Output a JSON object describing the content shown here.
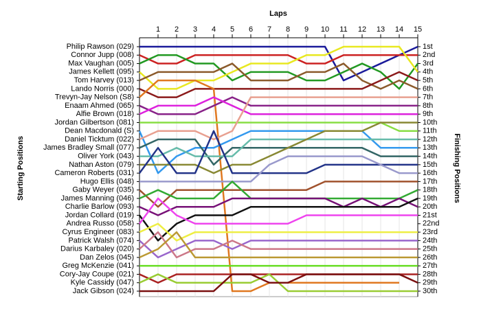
{
  "chart_data": {
    "type": "bump",
    "x_title": "Laps",
    "y_title": "Starting Positions",
    "y2_title": "Finishing Positions",
    "xlim": [
      0,
      15
    ],
    "xticks": [
      1,
      2,
      3,
      4,
      5,
      6,
      7,
      8,
      9,
      10,
      11,
      12,
      13,
      14,
      15
    ],
    "ylim": [
      1,
      30
    ],
    "inverted": true,
    "grid": true,
    "yticks": [
      {
        "value": 1,
        "label": "1st"
      },
      {
        "value": 2,
        "label": "2nd"
      },
      {
        "value": 3,
        "label": "3rd"
      },
      {
        "value": 4,
        "label": "4th"
      },
      {
        "value": 5,
        "label": "5th"
      },
      {
        "value": 6,
        "label": "6th"
      },
      {
        "value": 7,
        "label": "7th"
      },
      {
        "value": 8,
        "label": "8th"
      },
      {
        "value": 9,
        "label": "9th"
      },
      {
        "value": 10,
        "label": "10th"
      },
      {
        "value": 11,
        "label": "11th"
      },
      {
        "value": 12,
        "label": "12th"
      },
      {
        "value": 13,
        "label": "13th"
      },
      {
        "value": 14,
        "label": "14th"
      },
      {
        "value": 15,
        "label": "15th"
      },
      {
        "value": 16,
        "label": "16th"
      },
      {
        "value": 17,
        "label": "17th"
      },
      {
        "value": 18,
        "label": "18th"
      },
      {
        "value": 19,
        "label": "19th"
      },
      {
        "value": 20,
        "label": "20th"
      },
      {
        "value": 21,
        "label": "21st"
      },
      {
        "value": 22,
        "label": "22nd"
      },
      {
        "value": 23,
        "label": "23rd"
      },
      {
        "value": 24,
        "label": "24th"
      },
      {
        "value": 25,
        "label": "25th"
      },
      {
        "value": 26,
        "label": "26th"
      },
      {
        "value": 27,
        "label": "27th"
      },
      {
        "value": 28,
        "label": "28th"
      },
      {
        "value": 29,
        "label": "29th"
      },
      {
        "value": 30,
        "label": "30th"
      }
    ],
    "series": [
      {
        "name": "Philip Rawson (029)",
        "color": "#1a1a9a",
        "values": [
          1,
          1,
          1,
          1,
          1,
          1,
          1,
          1,
          1,
          1,
          1,
          5,
          4,
          3,
          2,
          1
        ]
      },
      {
        "name": "Connor Jupp (008)",
        "color": "#cc2222",
        "values": [
          2,
          3,
          3,
          2,
          2,
          2,
          2,
          2,
          2,
          3,
          3,
          2,
          2,
          2,
          2,
          2
        ]
      },
      {
        "name": "Max Vaughan (005)",
        "color": "#229922",
        "values": [
          3,
          2,
          2,
          3,
          3,
          5,
          4,
          4,
          4,
          5,
          5,
          4,
          3,
          4,
          6,
          3
        ]
      },
      {
        "name": "James Kellett (095)",
        "color": "#e8e820",
        "values": [
          4,
          6,
          6,
          5,
          5,
          4,
          3,
          3,
          3,
          2,
          2,
          1,
          1,
          1,
          1,
          4
        ]
      },
      {
        "name": "Tom Harvey (013)",
        "color": "#8b5a2b",
        "values": [
          5,
          4,
          4,
          4,
          4,
          3,
          5,
          5,
          5,
          4,
          4,
          3,
          5,
          6,
          5,
          6
        ]
      },
      {
        "name": "Lando Norris (000)",
        "color": "#8b1a1a",
        "values": [
          6,
          7,
          7,
          6,
          6,
          6,
          6,
          6,
          6,
          6,
          6,
          6,
          6,
          5,
          4,
          5
        ]
      },
      {
        "name": "Trevyn-Jay Nelson (S8)",
        "color": "#e07820",
        "values": [
          7,
          5,
          5,
          5,
          6,
          30,
          30,
          29,
          29,
          29,
          29,
          29,
          29,
          29,
          29,
          null
        ]
      },
      {
        "name": "Enaam Ahmed (065)",
        "color": "#882288",
        "values": [
          8,
          9,
          9,
          9,
          8,
          7,
          8,
          8,
          8,
          8,
          8,
          8,
          8,
          8,
          8,
          8
        ]
      },
      {
        "name": "Alfie Brown (018)",
        "color": "#dd22dd",
        "values": [
          9,
          8,
          8,
          8,
          7,
          8,
          9,
          9,
          9,
          9,
          9,
          9,
          9,
          9,
          9,
          9
        ]
      },
      {
        "name": "Jordan Gilbertson (081)",
        "color": "#88dd44",
        "values": [
          10,
          10,
          10,
          10,
          10,
          10,
          10,
          10,
          10,
          10,
          10,
          10,
          10,
          10,
          11,
          11
        ]
      },
      {
        "name": "Dean Macdonald (S)",
        "color": "#3399ee",
        "values": [
          11,
          16,
          14,
          13,
          13,
          12,
          11,
          11,
          11,
          11,
          11,
          11,
          11,
          13,
          13,
          13
        ]
      },
      {
        "name": "Daniel Ticktum (022)",
        "color": "#e8a090",
        "values": [
          12,
          11,
          11,
          11,
          12,
          11,
          7,
          7,
          7,
          7,
          7,
          7,
          7,
          7,
          7,
          7
        ]
      },
      {
        "name": "James Bradley Small (077)",
        "color": "#336666",
        "values": [
          13,
          12,
          12,
          12,
          15,
          13,
          13,
          13,
          13,
          13,
          13,
          13,
          13,
          14,
          14,
          14
        ]
      },
      {
        "name": "Oliver York (043)",
        "color": "#66bbaa",
        "values": [
          14,
          14,
          13,
          14,
          14,
          14,
          12,
          12,
          12,
          12,
          12,
          12,
          12,
          12,
          12,
          12
        ]
      },
      {
        "name": "Nathan Aston (079)",
        "color": "#888833",
        "values": [
          15,
          15,
          15,
          15,
          16,
          15,
          15,
          14,
          13,
          12,
          11,
          11,
          11,
          10,
          10,
          10
        ]
      },
      {
        "name": "Cameron Roberts (031)",
        "color": "#223388",
        "values": [
          16,
          13,
          16,
          16,
          11,
          16,
          16,
          16,
          16,
          16,
          15,
          15,
          15,
          15,
          15,
          15
        ]
      },
      {
        "name": "Hugo Ellis (048)",
        "color": "#9999cc",
        "values": [
          17,
          17,
          17,
          17,
          17,
          17,
          17,
          15,
          14,
          14,
          14,
          14,
          14,
          15,
          16,
          16
        ]
      },
      {
        "name": "Gaby Weyer (035)",
        "color": "#a0522d",
        "values": [
          18,
          20,
          18,
          18,
          18,
          18,
          18,
          18,
          18,
          18,
          17,
          17,
          17,
          17,
          17,
          17
        ]
      },
      {
        "name": "James Manning (046)",
        "color": "#33aa33",
        "values": [
          19,
          18,
          19,
          19,
          19,
          17,
          19,
          19,
          19,
          19,
          19,
          19,
          19,
          19,
          19,
          18
        ]
      },
      {
        "name": "Charlie Barlow (093)",
        "color": "#771177",
        "values": [
          20,
          21,
          20,
          20,
          20,
          19,
          19,
          19,
          19,
          19,
          19,
          20,
          19,
          20,
          19,
          20
        ]
      },
      {
        "name": "Jordan Collard (019)",
        "color": "#111111",
        "values": [
          21,
          24,
          22,
          21,
          21,
          21,
          20,
          20,
          20,
          20,
          20,
          20,
          20,
          20,
          20,
          19
        ]
      },
      {
        "name": "Andrea Russo (058)",
        "color": "#ee44ee",
        "values": [
          22,
          19,
          21,
          22,
          22,
          22,
          22,
          22,
          22,
          21,
          21,
          21,
          21,
          21,
          21,
          21
        ]
      },
      {
        "name": "Cyrus Engineer (083)",
        "color": "#eeee44",
        "values": [
          23,
          22,
          24,
          23,
          23,
          23,
          23,
          23,
          23,
          23,
          23,
          23,
          23,
          23,
          23,
          23
        ]
      },
      {
        "name": "Patrick Walsh (074)",
        "color": "#9966cc",
        "values": [
          24,
          26,
          25,
          24,
          24,
          25,
          24,
          24,
          24,
          24,
          24,
          24,
          24,
          24,
          24,
          24
        ]
      },
      {
        "name": "Darius Karbaley (020)",
        "color": "#cc7788",
        "values": [
          25,
          23,
          26,
          25,
          25,
          24,
          25,
          25,
          25,
          25,
          25,
          25,
          25,
          25,
          25,
          25
        ]
      },
      {
        "name": "Dan Zelos (045)",
        "color": "#bb9933",
        "values": [
          26,
          25,
          23,
          26,
          26,
          26,
          26,
          26,
          26,
          26,
          26,
          26,
          26,
          26,
          26,
          26
        ]
      },
      {
        "name": "Greg McKenzie (041)",
        "color": "#66dd22",
        "values": [
          27,
          27,
          27,
          27,
          27,
          27,
          27,
          27,
          27,
          27,
          27,
          27,
          27,
          27,
          27,
          27
        ]
      },
      {
        "name": "Cory-Jay Coupe (021)",
        "color": "#aa2222",
        "values": [
          28,
          29,
          28,
          28,
          28,
          28,
          28,
          28,
          28,
          28,
          28,
          28,
          28,
          28,
          28,
          28
        ]
      },
      {
        "name": "Kyle Cassidy (047)",
        "color": "#99cc33",
        "values": [
          29,
          28,
          29,
          29,
          29,
          29,
          29,
          28,
          30,
          30,
          30,
          30,
          30,
          30,
          30,
          30
        ]
      },
      {
        "name": "Jack Gibson (024)",
        "color": "#7a1010",
        "values": [
          30,
          30,
          30,
          30,
          30,
          28,
          28,
          29,
          29,
          28,
          28,
          28,
          28,
          28,
          28,
          29
        ]
      }
    ]
  }
}
